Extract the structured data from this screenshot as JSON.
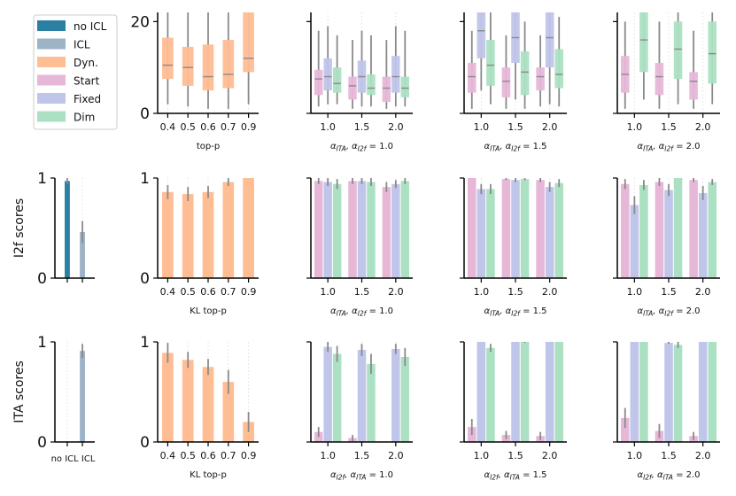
{
  "colors": {
    "no_icl": "#2a7fa3",
    "icl": "#9db3c6",
    "dyn": "#ffbd93",
    "start": "#e7b7d8",
    "fixed": "#c0c5ea",
    "dim": "#ace0c3",
    "median": "#8a8a8a",
    "err": "#8a8a8a",
    "grid": "#d9d9d9"
  },
  "legend": [
    {
      "label": "no ICL",
      "color_key": "no_icl"
    },
    {
      "label": "ICL",
      "color_key": "icl"
    },
    {
      "label": "Dyn.",
      "color_key": "dyn"
    },
    {
      "label": "Start",
      "color_key": "start"
    },
    {
      "label": "Fixed",
      "color_key": "fixed"
    },
    {
      "label": "Dim",
      "color_key": "dim"
    }
  ],
  "row_labels": [
    "I2f scores",
    "ITA scores"
  ],
  "chart_data": [
    {
      "id": "r0c1",
      "type": "box",
      "row": 0,
      "col": 1,
      "ylim": [
        0,
        22
      ],
      "yticks": [
        0,
        20
      ],
      "categories": [
        "0.4",
        "0.5",
        "0.6",
        "0.7",
        "0.9"
      ],
      "xlabel": "top-p",
      "boxes": [
        {
          "cat": 0,
          "series": "dyn",
          "q1": 7.5,
          "med": 10.5,
          "q3": 16.5,
          "lo": 2,
          "hi": 22
        },
        {
          "cat": 1,
          "series": "dyn",
          "q1": 6,
          "med": 10,
          "q3": 14.5,
          "lo": 1.5,
          "hi": 22
        },
        {
          "cat": 2,
          "series": "dyn",
          "q1": 5,
          "med": 8,
          "q3": 15,
          "lo": 1,
          "hi": 22
        },
        {
          "cat": 3,
          "series": "dyn",
          "q1": 5.5,
          "med": 8.5,
          "q3": 16,
          "lo": 1,
          "hi": 22
        },
        {
          "cat": 4,
          "series": "dyn",
          "q1": 9,
          "med": 12,
          "q3": 22,
          "lo": 2,
          "hi": 22
        }
      ]
    },
    {
      "id": "r0c2",
      "type": "box",
      "row": 0,
      "col": 2,
      "ylim": [
        0,
        22
      ],
      "yticks": [
        0,
        20
      ],
      "categories": [
        "1.0",
        "1.5",
        "2.0"
      ],
      "xlabel_parts": [
        [
          "α",
          "ITA",
          ", α",
          "I2f",
          " = 1.0"
        ]
      ],
      "boxes": [
        {
          "cat": 0,
          "series": "start",
          "q1": 4,
          "med": 7.5,
          "q3": 9.5,
          "lo": 1.5,
          "hi": 18
        },
        {
          "cat": 0,
          "series": "fixed",
          "q1": 5,
          "med": 8,
          "q3": 12,
          "lo": 2,
          "hi": 19
        },
        {
          "cat": 0,
          "series": "dim",
          "q1": 4.5,
          "med": 6.5,
          "q3": 10,
          "lo": 2,
          "hi": 17
        },
        {
          "cat": 1,
          "series": "start",
          "q1": 3,
          "med": 6,
          "q3": 8,
          "lo": 1,
          "hi": 16
        },
        {
          "cat": 1,
          "series": "fixed",
          "q1": 4.5,
          "med": 8,
          "q3": 11.5,
          "lo": 1.5,
          "hi": 18
        },
        {
          "cat": 1,
          "series": "dim",
          "q1": 4,
          "med": 5.5,
          "q3": 8.5,
          "lo": 1.5,
          "hi": 17
        },
        {
          "cat": 2,
          "series": "start",
          "q1": 2.5,
          "med": 5.5,
          "q3": 8,
          "lo": 1,
          "hi": 16
        },
        {
          "cat": 2,
          "series": "fixed",
          "q1": 4.5,
          "med": 8,
          "q3": 12.5,
          "lo": 1.5,
          "hi": 19
        },
        {
          "cat": 2,
          "series": "dim",
          "q1": 3.5,
          "med": 5.5,
          "q3": 8,
          "lo": 1.5,
          "hi": 18
        }
      ]
    },
    {
      "id": "r0c3",
      "type": "box",
      "row": 0,
      "col": 3,
      "ylim": [
        0,
        22
      ],
      "yticks": [
        0,
        20
      ],
      "categories": [
        "1.0",
        "1.5",
        "2.0"
      ],
      "xlabel_parts": [
        [
          "α",
          "ITA",
          ", α",
          "I2f",
          " = 1.5"
        ]
      ],
      "boxes": [
        {
          "cat": 0,
          "series": "start",
          "q1": 4.5,
          "med": 8,
          "q3": 11,
          "lo": 1,
          "hi": 18
        },
        {
          "cat": 0,
          "series": "fixed",
          "q1": 12,
          "med": 18,
          "q3": 22,
          "lo": 5,
          "hi": 22
        },
        {
          "cat": 0,
          "series": "dim",
          "q1": 6,
          "med": 10.5,
          "q3": 16,
          "lo": 2,
          "hi": 22
        },
        {
          "cat": 1,
          "series": "start",
          "q1": 3.5,
          "med": 7,
          "q3": 10,
          "lo": 1,
          "hi": 17
        },
        {
          "cat": 1,
          "series": "fixed",
          "q1": 11,
          "med": 16.5,
          "q3": 22,
          "lo": 3,
          "hi": 22
        },
        {
          "cat": 1,
          "series": "dim",
          "q1": 4,
          "med": 9,
          "q3": 13.5,
          "lo": 1,
          "hi": 20
        },
        {
          "cat": 2,
          "series": "start",
          "q1": 5,
          "med": 8,
          "q3": 10,
          "lo": 1.5,
          "hi": 17
        },
        {
          "cat": 2,
          "series": "fixed",
          "q1": 10,
          "med": 16.5,
          "q3": 22,
          "lo": 2,
          "hi": 22
        },
        {
          "cat": 2,
          "series": "dim",
          "q1": 5.5,
          "med": 8.5,
          "q3": 14,
          "lo": 1.5,
          "hi": 21
        }
      ]
    },
    {
      "id": "r0c4",
      "type": "box",
      "row": 0,
      "col": 4,
      "ylim": [
        0,
        22
      ],
      "yticks": [
        0,
        20
      ],
      "categories": [
        "1.0",
        "1.5",
        "2.0"
      ],
      "xlabel_parts": [
        [
          "α",
          "ITA",
          ", α",
          "I2f",
          " = 2.0"
        ]
      ],
      "boxes": [
        {
          "cat": 0,
          "series": "start",
          "q1": 4.5,
          "med": 8.5,
          "q3": 12.5,
          "lo": 1,
          "hi": 20
        },
        {
          "cat": 0,
          "series": "dim",
          "q1": 9,
          "med": 16,
          "q3": 22,
          "lo": 3,
          "hi": 22
        },
        {
          "cat": 1,
          "series": "start",
          "q1": 4,
          "med": 8,
          "q3": 11,
          "lo": 1,
          "hi": 20
        },
        {
          "cat": 1,
          "series": "dim",
          "q1": 7.5,
          "med": 14,
          "q3": 20,
          "lo": 2,
          "hi": 22
        },
        {
          "cat": 2,
          "series": "start",
          "q1": 3,
          "med": 7,
          "q3": 9,
          "lo": 1,
          "hi": 18
        },
        {
          "cat": 2,
          "series": "dim",
          "q1": 6.5,
          "med": 13,
          "q3": 20,
          "lo": 2,
          "hi": 22
        }
      ]
    },
    {
      "id": "r1c0",
      "type": "bar",
      "row": 1,
      "col": 0,
      "ylim": [
        0,
        1
      ],
      "yticks": [
        0,
        1
      ],
      "ylabel": "I2f scores",
      "categories": [
        "no ICL",
        "ICL"
      ],
      "show_xtick_labels": false,
      "bars": [
        {
          "cat": 0,
          "series": "no_icl",
          "value": 0.97,
          "err": 0.03
        },
        {
          "cat": 1,
          "series": "icl",
          "value": 0.46,
          "err": 0.11
        }
      ]
    },
    {
      "id": "r1c1",
      "type": "bar",
      "row": 1,
      "col": 1,
      "ylim": [
        0,
        1
      ],
      "yticks": [
        0,
        1
      ],
      "categories": [
        "0.4",
        "0.5",
        "0.6",
        "0.7",
        "0.9"
      ],
      "xlabel": "KL top-p",
      "bars": [
        {
          "cat": 0,
          "series": "dyn",
          "value": 0.86,
          "err": 0.07
        },
        {
          "cat": 1,
          "series": "dyn",
          "value": 0.84,
          "err": 0.07
        },
        {
          "cat": 2,
          "series": "dyn",
          "value": 0.86,
          "err": 0.06
        },
        {
          "cat": 3,
          "series": "dyn",
          "value": 0.96,
          "err": 0.04
        },
        {
          "cat": 4,
          "series": "dyn",
          "value": 1.0,
          "err": 0.0
        }
      ]
    },
    {
      "id": "r1c2",
      "type": "bar",
      "row": 1,
      "col": 2,
      "ylim": [
        0,
        1
      ],
      "yticks": [
        0,
        1
      ],
      "categories": [
        "1.0",
        "1.5",
        "2.0"
      ],
      "xlabel_parts": [
        [
          "α",
          "ITA",
          ", α",
          "I2f",
          " = 1.0"
        ]
      ],
      "bars": [
        {
          "cat": 0,
          "series": "start",
          "value": 0.97,
          "err": 0.03
        },
        {
          "cat": 0,
          "series": "fixed",
          "value": 0.96,
          "err": 0.04
        },
        {
          "cat": 0,
          "series": "dim",
          "value": 0.94,
          "err": 0.05
        },
        {
          "cat": 1,
          "series": "start",
          "value": 0.97,
          "err": 0.03
        },
        {
          "cat": 1,
          "series": "fixed",
          "value": 0.97,
          "err": 0.03
        },
        {
          "cat": 1,
          "series": "dim",
          "value": 0.96,
          "err": 0.04
        },
        {
          "cat": 2,
          "series": "start",
          "value": 0.91,
          "err": 0.05
        },
        {
          "cat": 2,
          "series": "fixed",
          "value": 0.94,
          "err": 0.04
        },
        {
          "cat": 2,
          "series": "dim",
          "value": 0.97,
          "err": 0.03
        }
      ]
    },
    {
      "id": "r1c3",
      "type": "bar",
      "row": 1,
      "col": 3,
      "ylim": [
        0,
        1
      ],
      "yticks": [
        0,
        1
      ],
      "categories": [
        "1.0",
        "1.5",
        "2.0"
      ],
      "xlabel_parts": [
        [
          "α",
          "ITA",
          ", α",
          "I2f",
          " = 1.5"
        ]
      ],
      "bars": [
        {
          "cat": 0,
          "series": "start",
          "value": 1.0,
          "err": 0.0
        },
        {
          "cat": 0,
          "series": "fixed",
          "value": 0.89,
          "err": 0.05
        },
        {
          "cat": 0,
          "series": "dim",
          "value": 0.89,
          "err": 0.05
        },
        {
          "cat": 1,
          "series": "start",
          "value": 0.99,
          "err": 0.01
        },
        {
          "cat": 1,
          "series": "fixed",
          "value": 0.98,
          "err": 0.02
        },
        {
          "cat": 1,
          "series": "dim",
          "value": 0.99,
          "err": 0.01
        },
        {
          "cat": 2,
          "series": "start",
          "value": 0.98,
          "err": 0.02
        },
        {
          "cat": 2,
          "series": "fixed",
          "value": 0.91,
          "err": 0.05
        },
        {
          "cat": 2,
          "series": "dim",
          "value": 0.95,
          "err": 0.04
        }
      ]
    },
    {
      "id": "r1c4",
      "type": "bar",
      "row": 1,
      "col": 4,
      "ylim": [
        0,
        1
      ],
      "yticks": [
        0,
        1
      ],
      "categories": [
        "1.0",
        "1.5",
        "2.0"
      ],
      "xlabel_parts": [
        [
          "α",
          "ITA",
          ", α",
          "I2f",
          " = 2.0"
        ]
      ],
      "bars": [
        {
          "cat": 0,
          "series": "start",
          "value": 0.94,
          "err": 0.05
        },
        {
          "cat": 0,
          "series": "fixed",
          "value": 0.73,
          "err": 0.09
        },
        {
          "cat": 0,
          "series": "dim",
          "value": 0.93,
          "err": 0.05
        },
        {
          "cat": 1,
          "series": "start",
          "value": 0.96,
          "err": 0.04
        },
        {
          "cat": 1,
          "series": "fixed",
          "value": 0.88,
          "err": 0.06
        },
        {
          "cat": 1,
          "series": "dim",
          "value": 1.0,
          "err": 0.0
        },
        {
          "cat": 2,
          "series": "start",
          "value": 0.98,
          "err": 0.02
        },
        {
          "cat": 2,
          "series": "fixed",
          "value": 0.85,
          "err": 0.07
        },
        {
          "cat": 2,
          "series": "dim",
          "value": 0.96,
          "err": 0.03
        }
      ]
    },
    {
      "id": "r2c0",
      "type": "bar",
      "row": 2,
      "col": 0,
      "ylim": [
        0,
        1
      ],
      "yticks": [
        0,
        1
      ],
      "ylabel": "ITA scores",
      "categories": [
        "no ICL",
        "ICL"
      ],
      "xtick_text": "no ICL ICL",
      "bars": [
        {
          "cat": 0,
          "series": "no_icl",
          "value": 0.0,
          "err": 0.0
        },
        {
          "cat": 1,
          "series": "icl",
          "value": 0.91,
          "err": 0.07
        }
      ]
    },
    {
      "id": "r2c1",
      "type": "bar",
      "row": 2,
      "col": 1,
      "ylim": [
        0,
        1
      ],
      "yticks": [
        0,
        1
      ],
      "categories": [
        "0.4",
        "0.5",
        "0.6",
        "0.7",
        "0.9"
      ],
      "xlabel": "KL top-p",
      "bars": [
        {
          "cat": 0,
          "series": "dyn",
          "value": 0.89,
          "err": 0.1
        },
        {
          "cat": 1,
          "series": "dyn",
          "value": 0.82,
          "err": 0.08
        },
        {
          "cat": 2,
          "series": "dyn",
          "value": 0.75,
          "err": 0.08
        },
        {
          "cat": 3,
          "series": "dyn",
          "value": 0.6,
          "err": 0.12
        },
        {
          "cat": 4,
          "series": "dyn",
          "value": 0.2,
          "err": 0.1
        }
      ]
    },
    {
      "id": "r2c2",
      "type": "bar",
      "row": 2,
      "col": 2,
      "ylim": [
        0,
        1
      ],
      "yticks": [
        0,
        1
      ],
      "categories": [
        "1.0",
        "1.5",
        "2.0"
      ],
      "xlabel_parts": [
        [
          "α",
          "I2f",
          ", α",
          "ITA",
          " = 1.0"
        ]
      ],
      "bars": [
        {
          "cat": 0,
          "series": "start",
          "value": 0.1,
          "err": 0.05
        },
        {
          "cat": 0,
          "series": "fixed",
          "value": 0.95,
          "err": 0.05
        },
        {
          "cat": 0,
          "series": "dim",
          "value": 0.88,
          "err": 0.08
        },
        {
          "cat": 1,
          "series": "start",
          "value": 0.04,
          "err": 0.03
        },
        {
          "cat": 1,
          "series": "fixed",
          "value": 0.92,
          "err": 0.06
        },
        {
          "cat": 1,
          "series": "dim",
          "value": 0.78,
          "err": 0.1
        },
        {
          "cat": 2,
          "series": "start",
          "value": 0.0,
          "err": 0.0
        },
        {
          "cat": 2,
          "series": "fixed",
          "value": 0.93,
          "err": 0.05
        },
        {
          "cat": 2,
          "series": "dim",
          "value": 0.85,
          "err": 0.09
        }
      ]
    },
    {
      "id": "r2c3",
      "type": "bar",
      "row": 2,
      "col": 3,
      "ylim": [
        0,
        1
      ],
      "yticks": [
        0,
        1
      ],
      "categories": [
        "1.0",
        "1.5",
        "2.0"
      ],
      "xlabel_parts": [
        [
          "α",
          "I2f",
          ", α",
          "ITA",
          " = 1.5"
        ]
      ],
      "bars": [
        {
          "cat": 0,
          "series": "start",
          "value": 0.15,
          "err": 0.08
        },
        {
          "cat": 0,
          "series": "fixed",
          "value": 1.0,
          "err": 0.0
        },
        {
          "cat": 0,
          "series": "dim",
          "value": 0.94,
          "err": 0.04
        },
        {
          "cat": 1,
          "series": "start",
          "value": 0.07,
          "err": 0.04
        },
        {
          "cat": 1,
          "series": "fixed",
          "value": 1.0,
          "err": 0.0
        },
        {
          "cat": 1,
          "series": "dim",
          "value": 1.0,
          "err": 0.01
        },
        {
          "cat": 2,
          "series": "start",
          "value": 0.06,
          "err": 0.04
        },
        {
          "cat": 2,
          "series": "fixed",
          "value": 1.0,
          "err": 0.0
        },
        {
          "cat": 2,
          "series": "dim",
          "value": 1.0,
          "err": 0.0
        }
      ]
    },
    {
      "id": "r2c4",
      "type": "bar",
      "row": 2,
      "col": 4,
      "ylim": [
        0,
        1
      ],
      "yticks": [
        0,
        1
      ],
      "categories": [
        "1.0",
        "1.5",
        "2.0"
      ],
      "xlabel_parts": [
        [
          "α",
          "I2f",
          ", α",
          "ITA",
          " = 2.0"
        ]
      ],
      "bars": [
        {
          "cat": 0,
          "series": "start",
          "value": 0.24,
          "err": 0.1
        },
        {
          "cat": 0,
          "series": "fixed",
          "value": 1.0,
          "err": 0.0
        },
        {
          "cat": 0,
          "series": "dim",
          "value": 1.0,
          "err": 0.0
        },
        {
          "cat": 1,
          "series": "start",
          "value": 0.11,
          "err": 0.07
        },
        {
          "cat": 1,
          "series": "fixed",
          "value": 0.99,
          "err": 0.01
        },
        {
          "cat": 1,
          "series": "dim",
          "value": 0.97,
          "err": 0.03
        },
        {
          "cat": 2,
          "series": "start",
          "value": 0.06,
          "err": 0.04
        },
        {
          "cat": 2,
          "series": "fixed",
          "value": 1.0,
          "err": 0.0
        },
        {
          "cat": 2,
          "series": "dim",
          "value": 1.0,
          "err": 0.0
        }
      ]
    }
  ]
}
